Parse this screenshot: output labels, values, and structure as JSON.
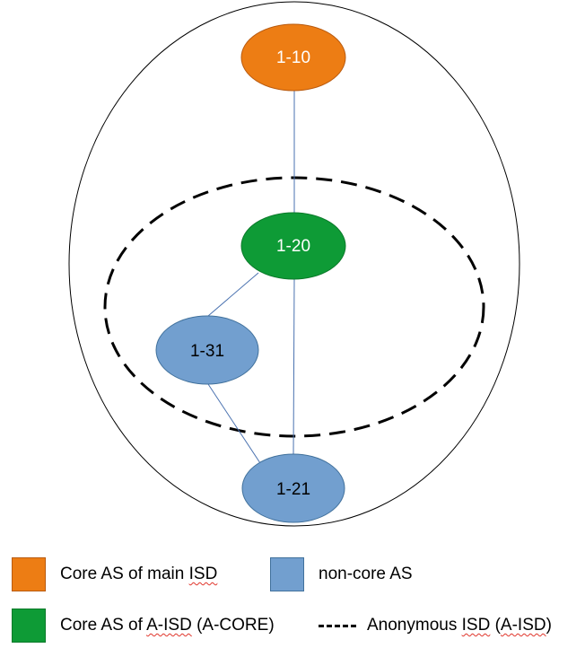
{
  "diagram": {
    "nodes": {
      "n1_10": {
        "label": "1-10",
        "color": "#ed7d14"
      },
      "n1_20": {
        "label": "1-20",
        "color": "#0e9b36"
      },
      "n1_31": {
        "label": "1-31",
        "color": "#729fcf"
      },
      "n1_21": {
        "label": "1-21",
        "color": "#729fcf"
      }
    },
    "edges": [
      [
        "1-10",
        "1-20"
      ],
      [
        "1-20",
        "1-31"
      ],
      [
        "1-20",
        "1-21"
      ],
      [
        "1-31",
        "1-21"
      ]
    ]
  },
  "legend": {
    "core_main": {
      "label_before": "Core AS of main ",
      "label_marked": "ISD",
      "color": "#ed7d14"
    },
    "non_core": {
      "label": "non-core AS",
      "color": "#729fcf"
    },
    "core_aisd": {
      "label_before": "Core AS of ",
      "label_marked": "A-ISD",
      "label_after": " (A-CORE)",
      "color": "#0e9b36"
    },
    "anon_isd": {
      "label_before": "Anonymous ",
      "label_marked": "ISD",
      "label_mid": " (",
      "label_marked2": "A-ISD",
      "label_after": ")"
    }
  }
}
